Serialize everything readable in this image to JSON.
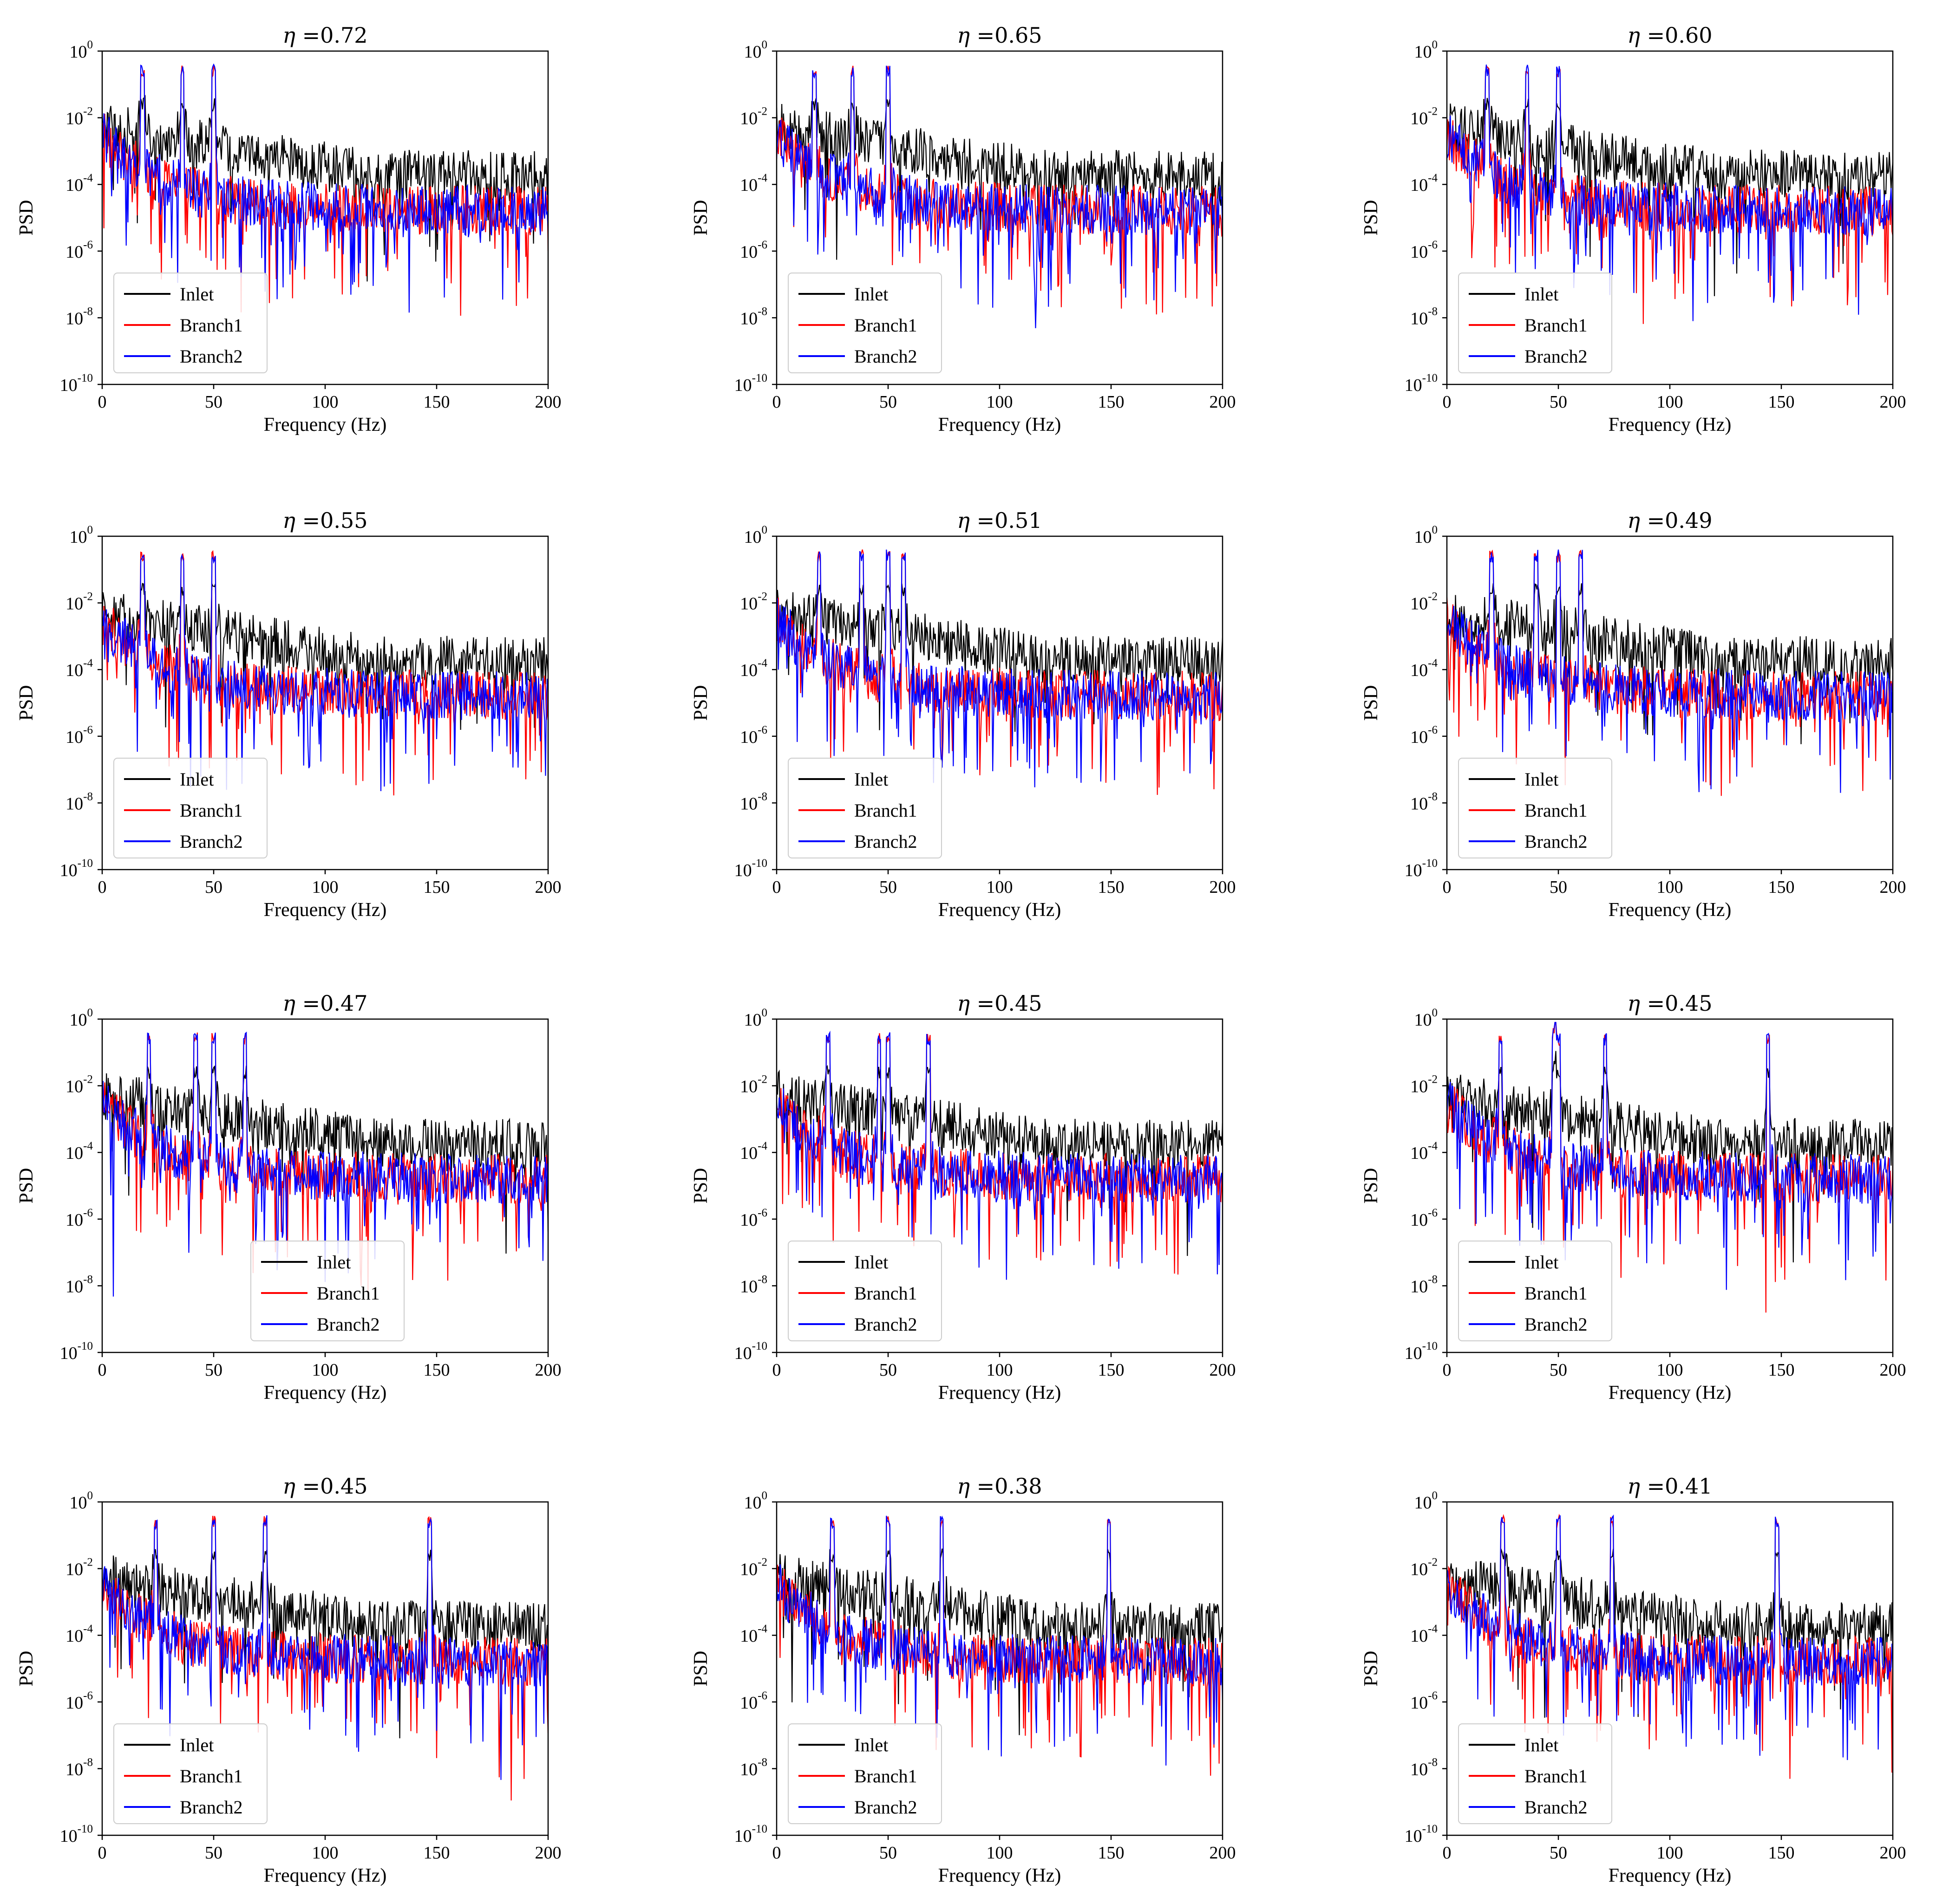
{
  "figure": {
    "xlabel": "Frequency (Hz)",
    "ylabel": "PSD",
    "legend_entries": [
      "Inlet",
      "Branch1",
      "Branch2"
    ],
    "series_colors": {
      "Inlet": "#000000",
      "Branch1": "#ff0000",
      "Branch2": "#0000ff"
    }
  },
  "chart_data": [
    {
      "type": "line",
      "title": "=0.72",
      "eta": 0.72,
      "xlim": [
        0,
        200
      ],
      "ylim": [
        1e-10,
        1
      ],
      "y_scale": "log",
      "x_ticks": [
        "0",
        "50",
        "100",
        "150",
        "200"
      ],
      "y_ticks": [
        "0",
        "-2",
        "-4",
        "-6",
        "-8",
        "-10"
      ],
      "legend_position": "lower-left",
      "peaks_hz": [
        18,
        36,
        50
      ],
      "series": [
        {
          "name": "Inlet",
          "color": "#000000"
        },
        {
          "name": "Branch1",
          "color": "#ff0000"
        },
        {
          "name": "Branch2",
          "color": "#0000ff"
        }
      ]
    },
    {
      "type": "line",
      "title": "=0.65",
      "eta": 0.65,
      "xlim": [
        0,
        200
      ],
      "ylim": [
        1e-10,
        1
      ],
      "y_scale": "log",
      "x_ticks": [
        "0",
        "50",
        "100",
        "150",
        "200"
      ],
      "y_ticks": [
        "0",
        "-2",
        "-4",
        "-6",
        "-8",
        "-10"
      ],
      "legend_position": "lower-left",
      "peaks_hz": [
        17,
        34,
        50
      ],
      "series": [
        {
          "name": "Inlet",
          "color": "#000000"
        },
        {
          "name": "Branch1",
          "color": "#ff0000"
        },
        {
          "name": "Branch2",
          "color": "#0000ff"
        }
      ]
    },
    {
      "type": "line",
      "title": "=0.60",
      "eta": 0.6,
      "xlim": [
        0,
        200
      ],
      "ylim": [
        1e-10,
        1
      ],
      "y_scale": "log",
      "x_ticks": [
        "0",
        "50",
        "100",
        "150",
        "200"
      ],
      "y_ticks": [
        "0",
        "-2",
        "-4",
        "-6",
        "-8",
        "-10"
      ],
      "legend_position": "lower-left",
      "peaks_hz": [
        18,
        36,
        50
      ],
      "series": [
        {
          "name": "Inlet",
          "color": "#000000"
        },
        {
          "name": "Branch1",
          "color": "#ff0000"
        },
        {
          "name": "Branch2",
          "color": "#0000ff"
        }
      ]
    },
    {
      "type": "line",
      "title": "=0.55",
      "eta": 0.55,
      "xlim": [
        0,
        200
      ],
      "ylim": [
        1e-10,
        1
      ],
      "y_scale": "log",
      "x_ticks": [
        "0",
        "50",
        "100",
        "150",
        "200"
      ],
      "y_ticks": [
        "0",
        "-2",
        "-4",
        "-6",
        "-8",
        "-10"
      ],
      "legend_position": "lower-left",
      "peaks_hz": [
        18,
        36,
        50
      ],
      "series": [
        {
          "name": "Inlet",
          "color": "#000000"
        },
        {
          "name": "Branch1",
          "color": "#ff0000"
        },
        {
          "name": "Branch2",
          "color": "#0000ff"
        }
      ]
    },
    {
      "type": "line",
      "title": "=0.51",
      "eta": 0.51,
      "xlim": [
        0,
        200
      ],
      "ylim": [
        1e-10,
        1
      ],
      "y_scale": "log",
      "x_ticks": [
        "0",
        "50",
        "100",
        "150",
        "200"
      ],
      "y_ticks": [
        "0",
        "-2",
        "-4",
        "-6",
        "-8",
        "-10"
      ],
      "legend_position": "lower-left",
      "peaks_hz": [
        19,
        38,
        50,
        57
      ],
      "series": [
        {
          "name": "Inlet",
          "color": "#000000"
        },
        {
          "name": "Branch1",
          "color": "#ff0000"
        },
        {
          "name": "Branch2",
          "color": "#0000ff"
        }
      ]
    },
    {
      "type": "line",
      "title": "=0.49",
      "eta": 0.49,
      "xlim": [
        0,
        200
      ],
      "ylim": [
        1e-10,
        1
      ],
      "y_scale": "log",
      "x_ticks": [
        "0",
        "50",
        "100",
        "150",
        "200"
      ],
      "y_ticks": [
        "0",
        "-2",
        "-4",
        "-6",
        "-8",
        "-10"
      ],
      "legend_position": "lower-left",
      "peaks_hz": [
        20,
        40,
        50,
        60
      ],
      "series": [
        {
          "name": "Inlet",
          "color": "#000000"
        },
        {
          "name": "Branch1",
          "color": "#ff0000"
        },
        {
          "name": "Branch2",
          "color": "#0000ff"
        }
      ]
    },
    {
      "type": "line",
      "title": "=0.47",
      "eta": 0.47,
      "xlim": [
        0,
        200
      ],
      "ylim": [
        1e-10,
        1
      ],
      "y_scale": "log",
      "x_ticks": [
        "0",
        "50",
        "100",
        "150",
        "200"
      ],
      "y_ticks": [
        "0",
        "-2",
        "-4",
        "-6",
        "-8",
        "-10"
      ],
      "legend_position": "lower-center",
      "peaks_hz": [
        21,
        42,
        50,
        64
      ],
      "series": [
        {
          "name": "Inlet",
          "color": "#000000"
        },
        {
          "name": "Branch1",
          "color": "#ff0000"
        },
        {
          "name": "Branch2",
          "color": "#0000ff"
        }
      ]
    },
    {
      "type": "line",
      "title": "=0.45",
      "eta": 0.45,
      "xlim": [
        0,
        200
      ],
      "ylim": [
        1e-10,
        1
      ],
      "y_scale": "log",
      "x_ticks": [
        "0",
        "50",
        "100",
        "150",
        "200"
      ],
      "y_ticks": [
        "0",
        "-2",
        "-4",
        "-6",
        "-8",
        "-10"
      ],
      "legend_position": "lower-left",
      "peaks_hz": [
        23,
        46,
        50,
        68
      ],
      "series": [
        {
          "name": "Inlet",
          "color": "#000000"
        },
        {
          "name": "Branch1",
          "color": "#ff0000"
        },
        {
          "name": "Branch2",
          "color": "#0000ff"
        }
      ]
    },
    {
      "type": "line",
      "title": "=0.45",
      "eta": 0.45,
      "xlim": [
        0,
        200
      ],
      "ylim": [
        1e-10,
        1
      ],
      "y_scale": "log",
      "x_ticks": [
        "0",
        "50",
        "100",
        "150",
        "200"
      ],
      "y_ticks": [
        "0",
        "-2",
        "-4",
        "-6",
        "-8",
        "-10"
      ],
      "legend_position": "lower-left",
      "peaks_hz": [
        24,
        48,
        50,
        71,
        144
      ],
      "series": [
        {
          "name": "Inlet",
          "color": "#000000"
        },
        {
          "name": "Branch1",
          "color": "#ff0000"
        },
        {
          "name": "Branch2",
          "color": "#0000ff"
        }
      ]
    },
    {
      "type": "line",
      "title": "=0.45",
      "eta": 0.45,
      "xlim": [
        0,
        200
      ],
      "ylim": [
        1e-10,
        1
      ],
      "y_scale": "log",
      "x_ticks": [
        "0",
        "50",
        "100",
        "150",
        "200"
      ],
      "y_ticks": [
        "0",
        "-2",
        "-4",
        "-6",
        "-8",
        "-10"
      ],
      "legend_position": "lower-left",
      "peaks_hz": [
        24,
        50,
        73,
        147
      ],
      "series": [
        {
          "name": "Inlet",
          "color": "#000000"
        },
        {
          "name": "Branch1",
          "color": "#ff0000"
        },
        {
          "name": "Branch2",
          "color": "#0000ff"
        }
      ]
    },
    {
      "type": "line",
      "title": "=0.38",
      "eta": 0.38,
      "xlim": [
        0,
        200
      ],
      "ylim": [
        1e-10,
        1
      ],
      "y_scale": "log",
      "x_ticks": [
        "0",
        "50",
        "100",
        "150",
        "200"
      ],
      "y_ticks": [
        "0",
        "-2",
        "-4",
        "-6",
        "-8",
        "-10"
      ],
      "legend_position": "lower-left",
      "peaks_hz": [
        25,
        50,
        74,
        149
      ],
      "series": [
        {
          "name": "Inlet",
          "color": "#000000"
        },
        {
          "name": "Branch1",
          "color": "#ff0000"
        },
        {
          "name": "Branch2",
          "color": "#0000ff"
        }
      ]
    },
    {
      "type": "line",
      "title": "=0.41",
      "eta": 0.41,
      "xlim": [
        0,
        200
      ],
      "ylim": [
        1e-10,
        1
      ],
      "y_scale": "log",
      "x_ticks": [
        "0",
        "50",
        "100",
        "150",
        "200"
      ],
      "y_ticks": [
        "0",
        "-2",
        "-4",
        "-6",
        "-8",
        "-10"
      ],
      "legend_position": "lower-left",
      "peaks_hz": [
        25,
        50,
        74,
        148
      ],
      "series": [
        {
          "name": "Inlet",
          "color": "#000000"
        },
        {
          "name": "Branch1",
          "color": "#ff0000"
        },
        {
          "name": "Branch2",
          "color": "#0000ff"
        }
      ]
    }
  ]
}
